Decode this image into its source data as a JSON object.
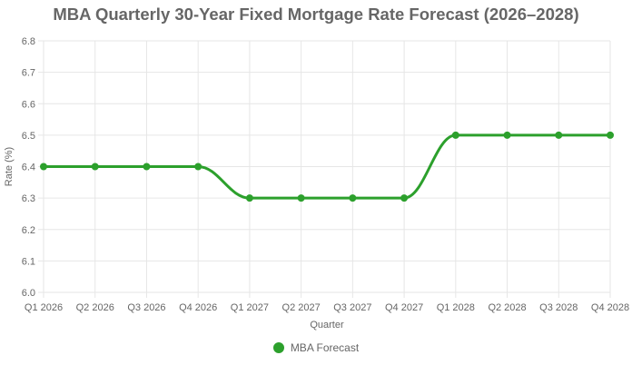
{
  "chart_data": {
    "type": "line",
    "title": "MBA Quarterly 30-Year Fixed Mortgage Rate Forecast (2026–2028)",
    "xlabel": "Quarter",
    "ylabel": "Rate (%)",
    "categories": [
      "Q1 2026",
      "Q2 2026",
      "Q3 2026",
      "Q4 2026",
      "Q1 2027",
      "Q2 2027",
      "Q3 2027",
      "Q4 2027",
      "Q1 2028",
      "Q2 2028",
      "Q3 2028",
      "Q4 2028"
    ],
    "series": [
      {
        "name": "MBA Forecast",
        "color": "#2ca02c",
        "values": [
          6.4,
          6.4,
          6.4,
          6.4,
          6.3,
          6.3,
          6.3,
          6.3,
          6.5,
          6.5,
          6.5,
          6.5
        ]
      }
    ],
    "ylim": [
      6.0,
      6.8
    ],
    "yticks": [
      "6.0",
      "6.1",
      "6.2",
      "6.3",
      "6.4",
      "6.5",
      "6.6",
      "6.7",
      "6.8"
    ],
    "grid": true,
    "legend_position": "bottom"
  }
}
